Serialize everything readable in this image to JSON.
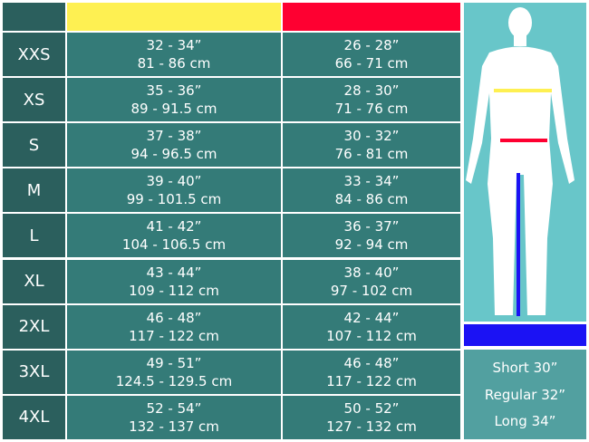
{
  "colors": {
    "chest": "#fef052",
    "waist": "#fe0031",
    "inseam": "#1b12f4",
    "size_cell": "#2b5f5d",
    "value_cell": "#347b78"
  },
  "rows": [
    {
      "size": "XXS",
      "chest_in": "32 - 34”",
      "chest_cm": "81 - 86 cm",
      "waist_in": "26 - 28”",
      "waist_cm": "66 - 71 cm"
    },
    {
      "size": "XS",
      "chest_in": "35 - 36”",
      "chest_cm": "89 - 91.5 cm",
      "waist_in": "28 - 30”",
      "waist_cm": "71 - 76 cm"
    },
    {
      "size": "S",
      "chest_in": "37 - 38”",
      "chest_cm": "94 - 96.5 cm",
      "waist_in": "30 - 32”",
      "waist_cm": "76 - 81 cm"
    },
    {
      "size": "M",
      "chest_in": "39 - 40”",
      "chest_cm": "99 - 101.5 cm",
      "waist_in": "33 - 34”",
      "waist_cm": "84 - 86 cm"
    },
    {
      "size": "L",
      "chest_in": "41 - 42”",
      "chest_cm": "104 - 106.5 cm",
      "waist_in": "36 - 37”",
      "waist_cm": "92 - 94 cm"
    },
    {
      "size": "XL",
      "chest_in": "43 - 44”",
      "chest_cm": "109 - 112 cm",
      "waist_in": "38 - 40”",
      "waist_cm": "97 - 102 cm"
    },
    {
      "size": "2XL",
      "chest_in": "46 - 48”",
      "chest_cm": "117 - 122 cm",
      "waist_in": "42 - 44”",
      "waist_cm": "107 - 112 cm"
    },
    {
      "size": "3XL",
      "chest_in": "49 - 51”",
      "chest_cm": "124.5 - 129.5 cm",
      "waist_in": "46 - 48”",
      "waist_cm": "117 - 122 cm"
    },
    {
      "size": "4XL",
      "chest_in": "52 - 54”",
      "chest_cm": "132 - 137 cm",
      "waist_in": "50 - 52”",
      "waist_cm": "127 - 132 cm"
    }
  ],
  "inseam": [
    "Short 30”",
    "Regular 32”",
    "Long 34”"
  ]
}
